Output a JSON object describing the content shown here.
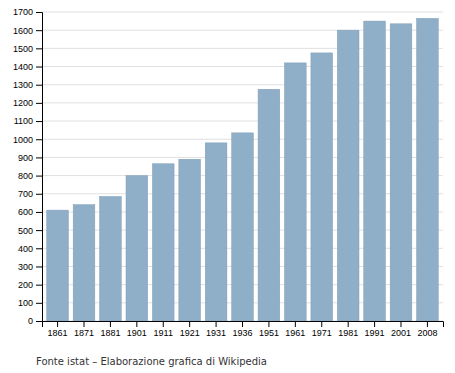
{
  "chart_data": {
    "type": "bar",
    "categories": [
      "1861",
      "1871",
      "1881",
      "1901",
      "1911",
      "1921",
      "1931",
      "1936",
      "1951",
      "1961",
      "1971",
      "1981",
      "1991",
      "2001",
      "2008"
    ],
    "values": [
      610,
      640,
      685,
      800,
      865,
      890,
      980,
      1035,
      1275,
      1420,
      1475,
      1600,
      1650,
      1635,
      1665
    ],
    "color": "#8FAFC9",
    "ylim": [
      0,
      1700
    ],
    "yticks": [
      0,
      100,
      200,
      300,
      400,
      500,
      600,
      700,
      800,
      900,
      1000,
      1100,
      1200,
      1300,
      1400,
      1500,
      1600,
      1700
    ],
    "grid": true,
    "annotations": [
      "Fonte istat – Elaborazione grafica di Wikipedia"
    ]
  }
}
